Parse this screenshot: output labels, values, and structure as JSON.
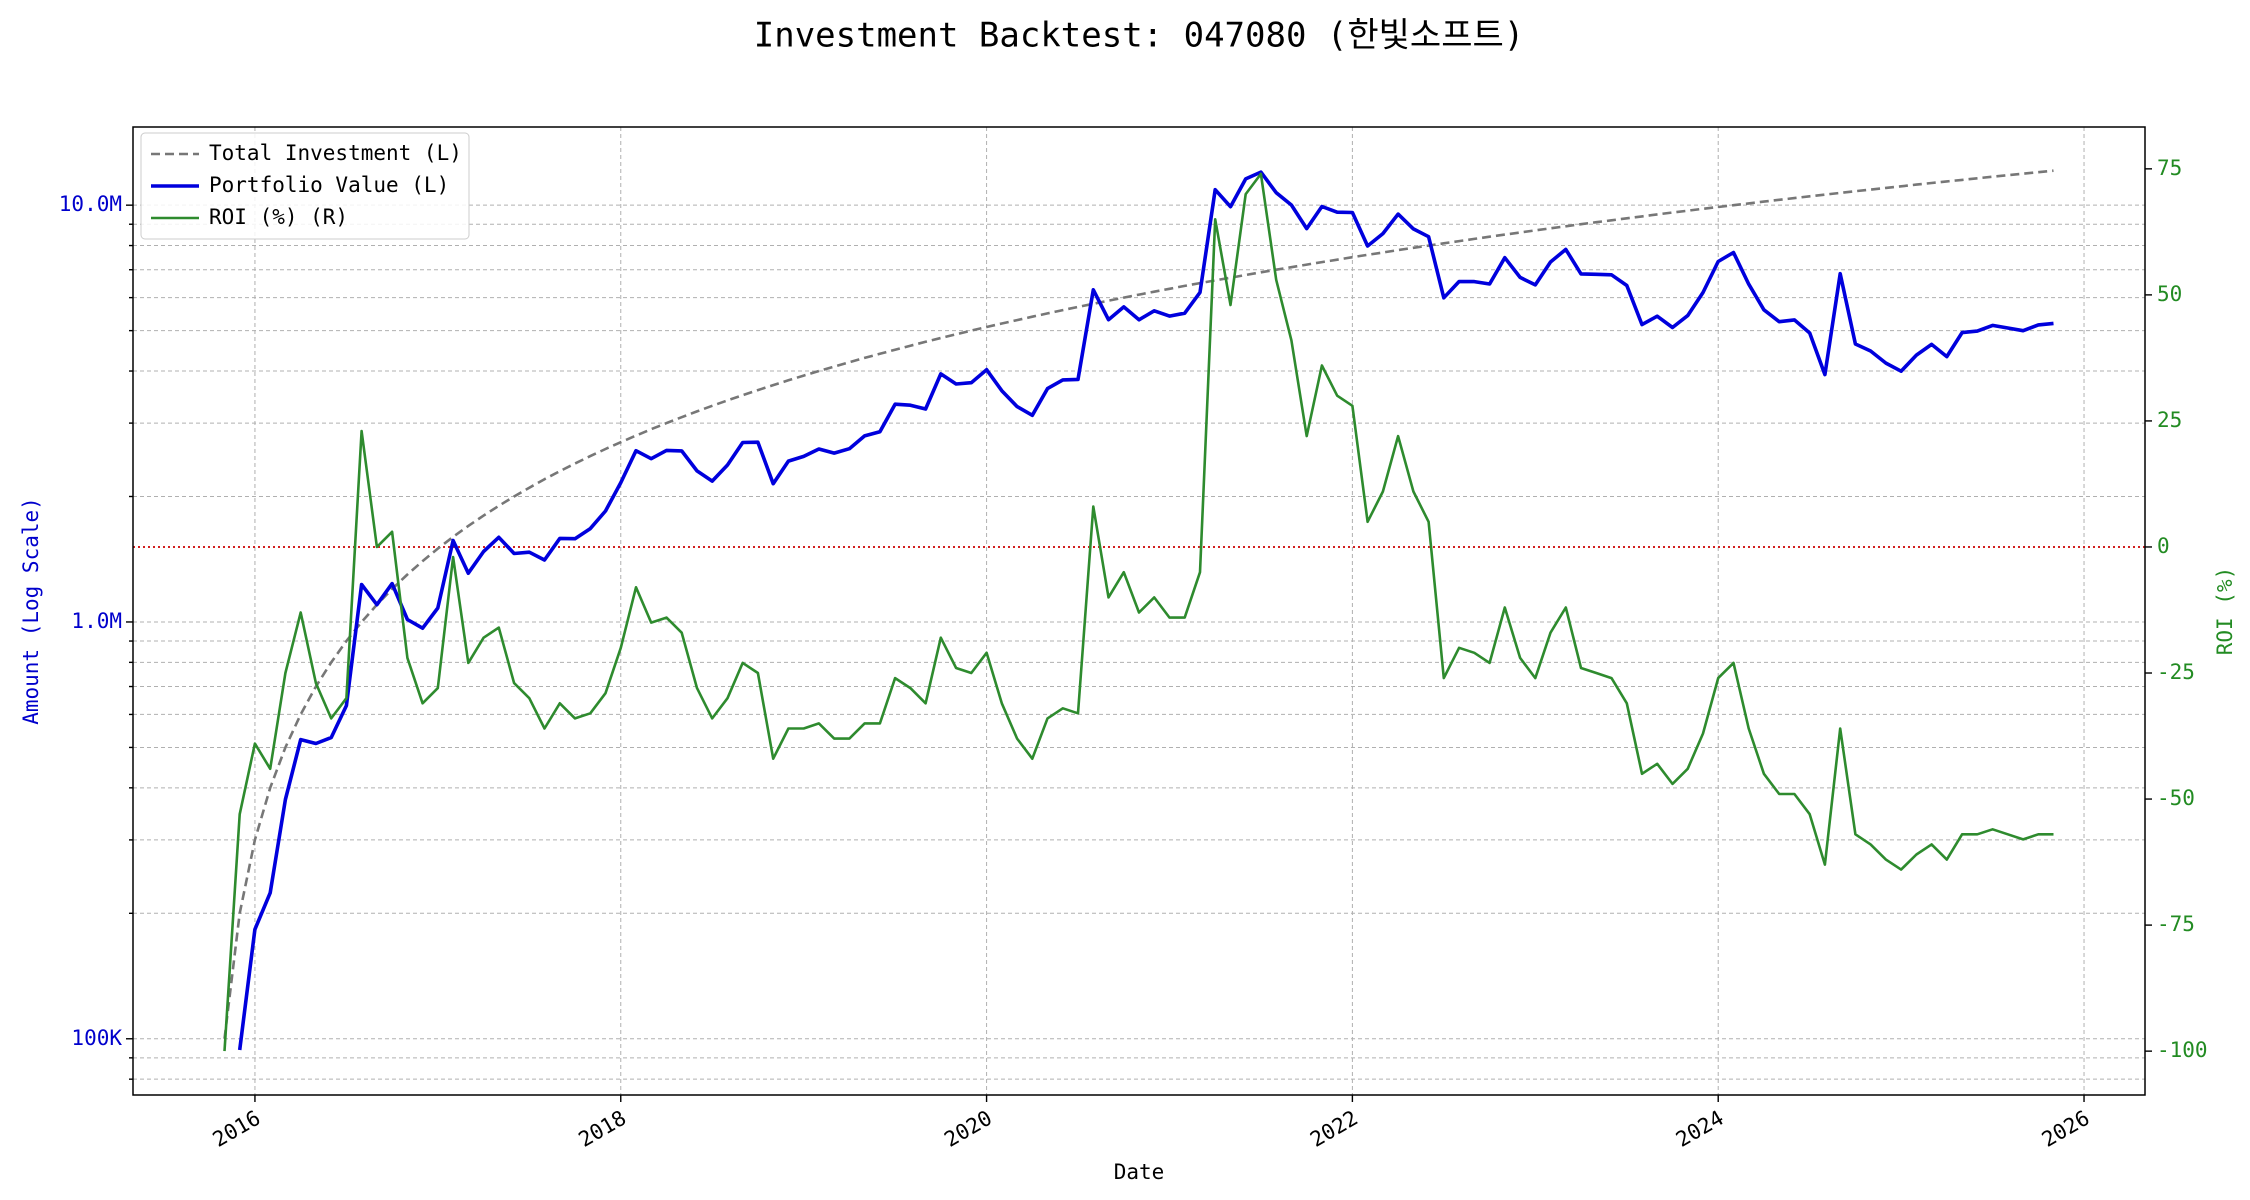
{
  "chart_data": {
    "type": "line",
    "title": "Investment Backtest: 047080 (한빛소프트)",
    "xlabel": "Date",
    "ylabel": "Amount (Log Scale)",
    "y2label": "ROI (%)",
    "log_y": true,
    "grid": true,
    "legend": "upper left",
    "x": [
      "2015-11",
      "2015-12",
      "2016-01",
      "2016-02",
      "2016-03",
      "2016-04",
      "2016-05",
      "2016-06",
      "2016-07",
      "2016-08",
      "2016-09",
      "2016-10",
      "2016-11",
      "2016-12",
      "2017-01",
      "2017-02",
      "2017-03",
      "2017-04",
      "2017-05",
      "2017-06",
      "2017-07",
      "2017-08",
      "2017-09",
      "2017-10",
      "2017-11",
      "2017-12",
      "2018-01",
      "2018-02",
      "2018-03",
      "2018-04",
      "2018-05",
      "2018-06",
      "2018-07",
      "2018-08",
      "2018-09",
      "2018-10",
      "2018-11",
      "2018-12",
      "2019-01",
      "2019-02",
      "2019-03",
      "2019-04",
      "2019-05",
      "2019-06",
      "2019-07",
      "2019-08",
      "2019-09",
      "2019-10",
      "2019-11",
      "2019-12",
      "2020-01",
      "2020-02",
      "2020-03",
      "2020-04",
      "2020-05",
      "2020-06",
      "2020-07",
      "2020-08",
      "2020-09",
      "2020-10",
      "2020-11",
      "2020-12",
      "2021-01",
      "2021-02",
      "2021-03",
      "2021-04",
      "2021-05",
      "2021-06",
      "2021-07",
      "2021-08",
      "2021-09",
      "2021-10",
      "2021-11",
      "2021-12",
      "2022-01",
      "2022-02",
      "2022-03",
      "2022-04",
      "2022-05",
      "2022-06",
      "2022-07",
      "2022-08",
      "2022-09",
      "2022-10",
      "2022-11",
      "2022-12",
      "2023-01",
      "2023-02",
      "2023-03",
      "2023-04",
      "2023-05",
      "2023-06",
      "2023-07",
      "2023-08",
      "2023-09",
      "2023-10",
      "2023-11",
      "2023-12",
      "2024-01",
      "2024-02",
      "2024-03",
      "2024-04",
      "2024-05",
      "2024-06",
      "2024-07",
      "2024-08",
      "2024-09",
      "2024-10",
      "2024-11",
      "2024-12",
      "2025-01",
      "2025-02",
      "2025-03",
      "2025-04",
      "2025-05",
      "2025-06",
      "2025-07",
      "2025-08",
      "2025-09",
      "2025-10",
      "2025-11"
    ],
    "series": [
      {
        "name": "Total Investment (L)",
        "color": "#777777",
        "dash": true,
        "axis": "y",
        "values": [
          100000,
          200000,
          300000,
          400000,
          500000,
          600000,
          700000,
          800000,
          900000,
          1000000,
          1100000,
          1200000,
          1300000,
          1400000,
          1500000,
          1600000,
          1700000,
          1800000,
          1900000,
          2000000,
          2100000,
          2200000,
          2300000,
          2400000,
          2500000,
          2600000,
          2700000,
          2800000,
          2900000,
          3000000,
          3100000,
          3200000,
          3300000,
          3400000,
          3500000,
          3600000,
          3700000,
          3800000,
          3900000,
          4000000,
          4100000,
          4200000,
          4300000,
          4400000,
          4500000,
          4600000,
          4700000,
          4800000,
          4900000,
          5000000,
          5100000,
          5200000,
          5300000,
          5400000,
          5500000,
          5600000,
          5700000,
          5800000,
          5900000,
          6000000,
          6100000,
          6200000,
          6300000,
          6400000,
          6500000,
          6600000,
          6700000,
          6800000,
          6900000,
          7000000,
          7100000,
          7200000,
          7300000,
          7400000,
          7500000,
          7600000,
          7700000,
          7800000,
          7900000,
          8000000,
          8100000,
          8200000,
          8300000,
          8400000,
          8500000,
          8600000,
          8700000,
          8800000,
          8900000,
          9000000,
          9100000,
          9200000,
          9300000,
          9400000,
          9500000,
          9600000,
          9700000,
          9800000,
          9900000,
          10000000,
          10100000,
          10200000,
          10300000,
          10400000,
          10500000,
          10600000,
          10700000,
          10800000,
          10900000,
          11000000,
          11100000,
          11200000,
          11300000,
          11400000,
          11500000,
          11600000,
          11700000,
          11800000,
          11900000,
          12000000,
          12100000
        ]
      },
      {
        "name": "Portfolio Value (L)",
        "color": "#0000dd",
        "width": 3.6,
        "axis": "y",
        "values": [
          null,
          94000,
          183000,
          224000,
          375000,
          522000,
          511000,
          528000,
          630000,
          1230000,
          1100000,
          1236000,
          1014000,
          966000,
          1080000,
          1568000,
          1309000,
          1476000,
          1596000,
          1460000,
          1470000,
          1408000,
          1587000,
          1584000,
          1675000,
          1846000,
          2160000,
          2576000,
          2465000,
          2580000,
          2573000,
          2304000,
          2178000,
          2380000,
          2695000,
          2700000,
          2146000,
          2432000,
          2496000,
          2600000,
          2542000,
          2604000,
          2795000,
          2860000,
          3330000,
          3312000,
          3243000,
          3936000,
          3724000,
          3750000,
          4029000,
          3588000,
          3286000,
          3132000,
          3630000,
          3808000,
          3819000,
          6264000,
          5310000,
          5700000,
          5307000,
          5580000,
          5418000,
          5504000,
          6175000,
          10890000,
          9916000,
          11560000,
          12006000,
          10710000,
          10011000,
          8784000,
          9928000,
          9620000,
          9600000,
          7980000,
          8547000,
          9516000,
          8769000,
          8400000,
          5994000,
          6560000,
          6557000,
          6468000,
          7480000,
          6708000,
          6438000,
          7304000,
          7832000,
          6840000,
          6825000,
          6808000,
          6417000,
          5170000,
          5415000,
          5088000,
          5432000,
          6174000,
          7326000,
          7700000,
          6464000,
          5610000,
          5253000,
          5304000,
          4935000,
          3922000,
          6848000,
          4644000,
          4469000,
          4180000,
          3996000,
          4368000,
          4633000,
          4332000,
          4945000,
          4988000,
          5148000,
          5074000,
          4998000,
          5160000,
          5203000
        ]
      },
      {
        "name": "ROI (%) (R)",
        "color": "#2e8b2e",
        "width": 2.6,
        "axis": "y2",
        "values": [
          -100,
          -53,
          -39,
          -44,
          -25,
          -13,
          -27,
          -34,
          -30,
          23,
          0,
          3,
          -22,
          -31,
          -28,
          -2,
          -23,
          -18,
          -16,
          -27,
          -30,
          -36,
          -31,
          -34,
          -33,
          -29,
          -20,
          -8,
          -15,
          -14,
          -17,
          -28,
          -34,
          -30,
          -23,
          -25,
          -42,
          -36,
          -36,
          -35,
          -38,
          -38,
          -35,
          -35,
          -26,
          -28,
          -31,
          -18,
          -24,
          -25,
          -21,
          -31,
          -38,
          -42,
          -34,
          -32,
          -33,
          8,
          -10,
          -5,
          -13,
          -10,
          -14,
          -14,
          -5,
          65,
          48,
          70,
          74,
          53,
          41,
          22,
          36,
          30,
          28,
          5,
          11,
          22,
          11,
          5,
          -26,
          -20,
          -21,
          -23,
          -12,
          -22,
          -26,
          -17,
          -12,
          -24,
          -25,
          -26,
          -31,
          -45,
          -43,
          -47,
          -44,
          -37,
          -26,
          -23,
          -36,
          -45,
          -49,
          -49,
          -53,
          -63,
          -36,
          -57,
          -59,
          -62,
          -64,
          -61,
          -59,
          -62,
          -57,
          -57,
          -56,
          -57,
          -58,
          -57,
          -57
        ]
      }
    ],
    "reference_line": {
      "axis": "y2",
      "value": 0,
      "color": "#cc0000"
    },
    "xlim": [
      "2015-05",
      "2026-05"
    ],
    "xticks": [
      {
        "value": "2016-01",
        "label": "2016"
      },
      {
        "value": "2018-01",
        "label": "2018"
      },
      {
        "value": "2020-01",
        "label": "2020"
      },
      {
        "value": "2022-01",
        "label": "2022"
      },
      {
        "value": "2024-01",
        "label": "2024"
      },
      {
        "value": "2026-01",
        "label": "2026"
      }
    ],
    "ylim": [
      73300,
      15400000
    ],
    "yticks": [
      {
        "value": 100000,
        "label": "100K"
      },
      {
        "value": 1000000,
        "label": "1.0M"
      },
      {
        "value": 10000000,
        "label": "10.0M"
      }
    ],
    "yminorticks": [
      80000,
      90000,
      200000,
      300000,
      400000,
      500000,
      600000,
      700000,
      800000,
      900000,
      2000000,
      3000000,
      4000000,
      5000000,
      6000000,
      7000000,
      8000000,
      9000000
    ],
    "y2lim": [
      -108.7,
      83.3
    ],
    "y2ticks": [
      -100,
      -75,
      -50,
      -25,
      0,
      25,
      50,
      75
    ],
    "ytick_color": "#0000cc",
    "y2tick_color": "#228b22"
  }
}
